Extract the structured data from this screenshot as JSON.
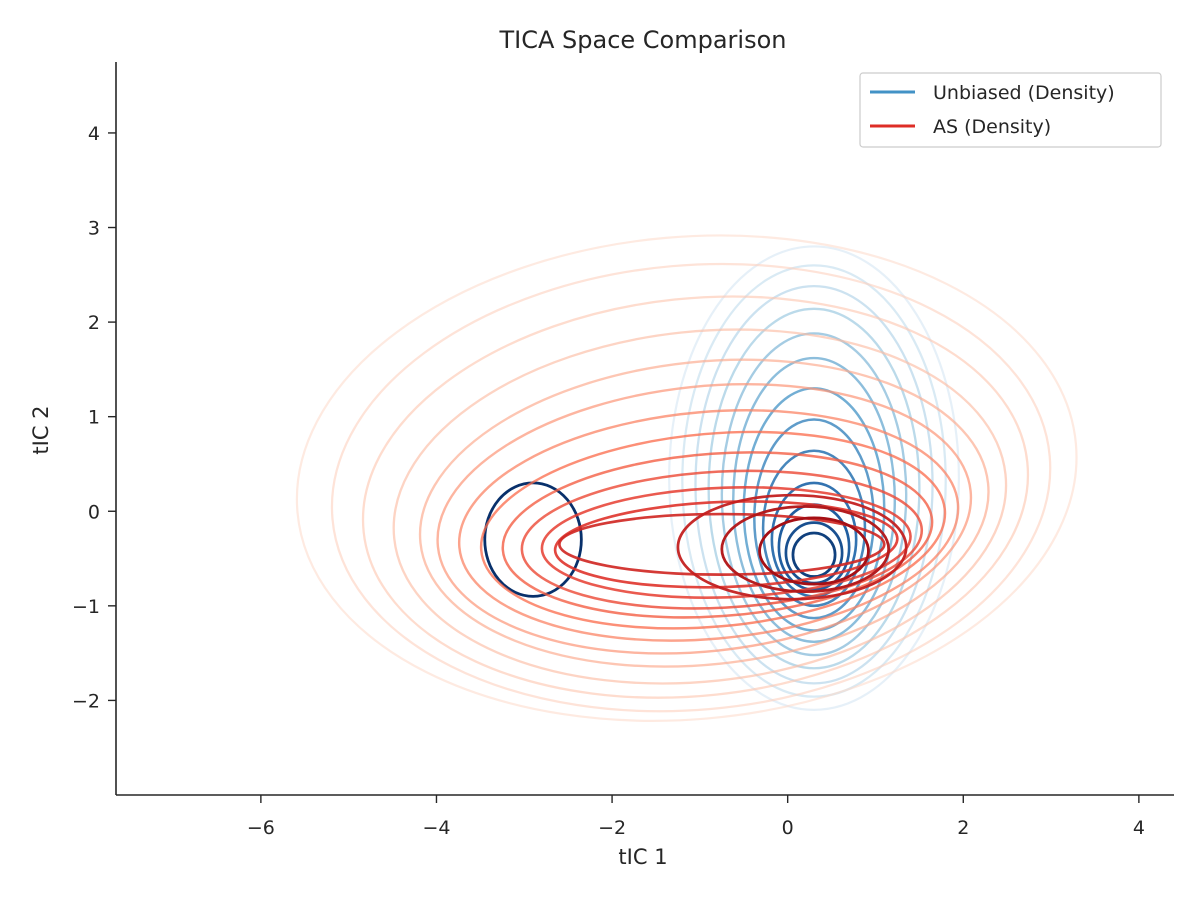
{
  "chart_data": {
    "type": "contour",
    "title": "TICA Space Comparison",
    "xlabel": "tIC 1",
    "ylabel": "tIC 2",
    "xlim": [
      -7.65,
      4.4
    ],
    "ylim": [
      -3.0,
      4.75
    ],
    "xticks": [
      -6,
      -4,
      -2,
      0,
      2,
      4
    ],
    "yticks": [
      -2,
      -1,
      0,
      1,
      2,
      3,
      4
    ],
    "xtick_labels": [
      "−6",
      "−4",
      "−2",
      "0",
      "2",
      "4"
    ],
    "ytick_labels": [
      "−2",
      "−1",
      "0",
      "1",
      "2",
      "3",
      "4"
    ],
    "grid": false,
    "legend_position": "top-right",
    "series": [
      {
        "name": "Unbiased (Density)",
        "color": "#4292c6",
        "colormap": "Blues",
        "description_peak": [
          0.3,
          -0.45
        ],
        "contours": [
          {
            "level": 1,
            "cx": 0.3,
            "cy": 0.35,
            "rx": 1.65,
            "ry": 2.45,
            "tilt": 0
          },
          {
            "level": 2,
            "cx": 0.3,
            "cy": 0.32,
            "rx": 1.5,
            "ry": 2.28,
            "tilt": 0
          },
          {
            "level": 3,
            "cx": 0.3,
            "cy": 0.28,
            "rx": 1.35,
            "ry": 2.1,
            "tilt": 0
          },
          {
            "level": 4,
            "cx": 0.3,
            "cy": 0.24,
            "rx": 1.2,
            "ry": 1.9,
            "tilt": 0
          },
          {
            "level": 5,
            "cx": 0.3,
            "cy": 0.18,
            "rx": 1.05,
            "ry": 1.7,
            "tilt": 0
          },
          {
            "level": 6,
            "cx": 0.3,
            "cy": 0.12,
            "rx": 0.92,
            "ry": 1.5,
            "tilt": 0
          },
          {
            "level": 7,
            "cx": 0.3,
            "cy": 0.02,
            "rx": 0.8,
            "ry": 1.28,
            "tilt": 0
          },
          {
            "level": 8,
            "cx": 0.3,
            "cy": -0.08,
            "rx": 0.68,
            "ry": 1.05,
            "tilt": 0
          },
          {
            "level": 9,
            "cx": 0.3,
            "cy": -0.18,
            "rx": 0.58,
            "ry": 0.82,
            "tilt": 0
          },
          {
            "level": 10,
            "cx": 0.3,
            "cy": -0.3,
            "rx": 0.48,
            "ry": 0.6,
            "tilt": 0
          },
          {
            "level": 11,
            "cx": 0.3,
            "cy": -0.38,
            "rx": 0.4,
            "ry": 0.45,
            "tilt": 0
          },
          {
            "level": 12,
            "cx": 0.3,
            "cy": -0.44,
            "rx": 0.32,
            "ry": 0.32,
            "tilt": 0
          },
          {
            "level": 13,
            "cx": 0.3,
            "cy": -0.46,
            "rx": 0.24,
            "ry": 0.23,
            "tilt": 0
          },
          {
            "level": 14,
            "cx": -2.9,
            "cy": -0.3,
            "rx": 0.55,
            "ry": 0.6,
            "tilt": 0
          }
        ]
      },
      {
        "name": "AS (Density)",
        "color": "#de2d26",
        "colormap": "Reds",
        "contours": [
          {
            "level": 1,
            "cx": -1.15,
            "cy": 0.35,
            "rx": 4.45,
            "ry": 2.55,
            "tilt": -5
          },
          {
            "level": 2,
            "cx": -1.1,
            "cy": 0.25,
            "rx": 4.1,
            "ry": 2.35,
            "tilt": -5
          },
          {
            "level": 3,
            "cx": -1.05,
            "cy": 0.15,
            "rx": 3.8,
            "ry": 2.1,
            "tilt": -6
          },
          {
            "level": 4,
            "cx": -1.0,
            "cy": 0.05,
            "rx": 3.5,
            "ry": 1.85,
            "tilt": -6
          },
          {
            "level": 5,
            "cx": -0.95,
            "cy": -0.02,
            "rx": 3.25,
            "ry": 1.6,
            "tilt": -6
          },
          {
            "level": 6,
            "cx": -0.95,
            "cy": -0.08,
            "rx": 3.05,
            "ry": 1.4,
            "tilt": -6
          },
          {
            "level": 7,
            "cx": -0.9,
            "cy": -0.15,
            "rx": 2.85,
            "ry": 1.2,
            "tilt": -5
          },
          {
            "level": 8,
            "cx": -0.85,
            "cy": -0.2,
            "rx": 2.65,
            "ry": 1.02,
            "tilt": -5
          },
          {
            "level": 9,
            "cx": -0.8,
            "cy": -0.25,
            "rx": 2.45,
            "ry": 0.86,
            "tilt": -4
          },
          {
            "level": 10,
            "cx": -0.75,
            "cy": -0.3,
            "rx": 2.28,
            "ry": 0.72,
            "tilt": -3
          },
          {
            "level": 11,
            "cx": -0.7,
            "cy": -0.33,
            "rx": 2.1,
            "ry": 0.58,
            "tilt": -2
          },
          {
            "level": 12,
            "cx": -0.7,
            "cy": -0.35,
            "rx": 1.95,
            "ry": 0.45,
            "tilt": -2
          },
          {
            "level": 13,
            "cx": -0.75,
            "cy": -0.35,
            "rx": 1.85,
            "ry": 0.32,
            "tilt": 0
          },
          {
            "level": 14,
            "cx": 0.05,
            "cy": -0.38,
            "rx": 1.3,
            "ry": 0.55,
            "tilt": 0
          },
          {
            "level": 15,
            "cx": 0.2,
            "cy": -0.4,
            "rx": 0.95,
            "ry": 0.45,
            "tilt": 0
          },
          {
            "level": 16,
            "cx": 0.3,
            "cy": -0.42,
            "rx": 0.62,
            "ry": 0.35,
            "tilt": 0
          }
        ]
      }
    ]
  }
}
